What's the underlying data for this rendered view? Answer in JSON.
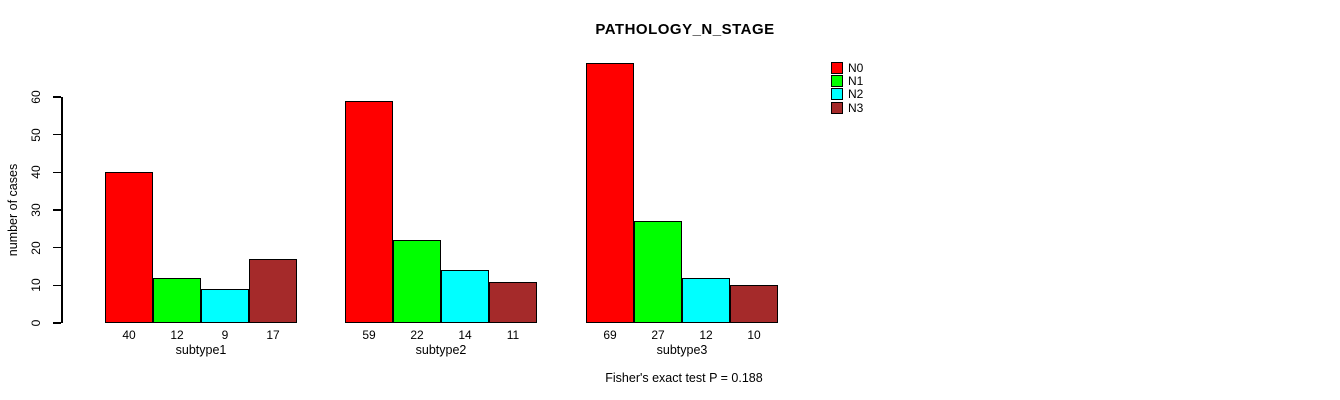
{
  "title": "PATHOLOGY_N_STAGE",
  "footer": "Fisher's exact test P = 0.188",
  "chart_data": {
    "type": "bar",
    "grouped": true,
    "title": "PATHOLOGY_N_STAGE",
    "categories": [
      "subtype1",
      "subtype2",
      "subtype3"
    ],
    "series": [
      {
        "name": "N0",
        "color": "#FF0000",
        "values": [
          40,
          59,
          69
        ]
      },
      {
        "name": "N1",
        "color": "#00FF00",
        "values": [
          12,
          22,
          27
        ]
      },
      {
        "name": "N2",
        "color": "#00FFFF",
        "values": [
          9,
          14,
          12
        ]
      },
      {
        "name": "N3",
        "color": "#A52A2A",
        "values": [
          17,
          11,
          10
        ]
      }
    ],
    "xlabel": "",
    "ylabel": "number of cases",
    "ylim": [
      0,
      69
    ],
    "yticks": [
      0,
      10,
      20,
      30,
      40,
      50,
      60
    ],
    "grid": false,
    "legend_position": "right",
    "bar_value_labels_shown": true,
    "annotation": "Fisher's exact test P = 0.188"
  }
}
